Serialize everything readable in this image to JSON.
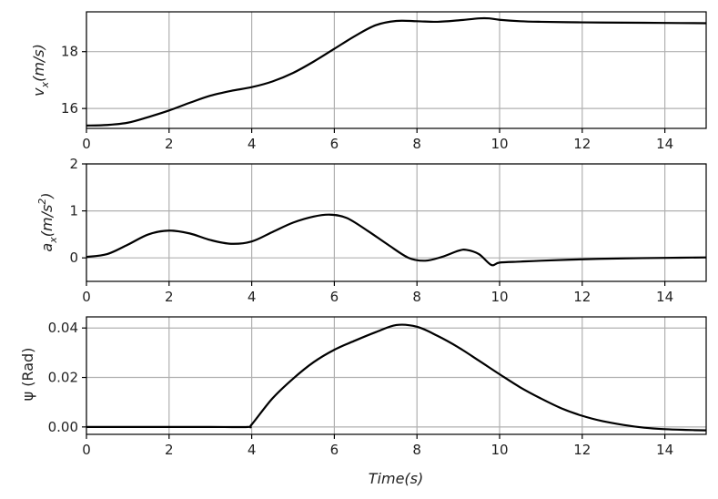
{
  "chart_data": [
    {
      "type": "line",
      "ylabel_symbol": "v",
      "ylabel_subscript": "x",
      "ylabel_unit": "(m/s)",
      "xlim": [
        0,
        15
      ],
      "ylim": [
        15.3,
        19.4
      ],
      "xticks": [
        0,
        2,
        4,
        6,
        8,
        10,
        12,
        14
      ],
      "xtick_labels": [
        "0",
        "2",
        "4",
        "6",
        "8",
        "10",
        "12",
        "14"
      ],
      "yticks": [
        16,
        18
      ],
      "ytick_labels": [
        "16",
        "18"
      ],
      "grid": true,
      "series": [
        {
          "color": "#000000",
          "x": [
            0,
            0.5,
            1,
            1.5,
            2,
            2.5,
            3,
            3.5,
            4,
            4.5,
            5,
            5.5,
            6,
            6.5,
            7,
            7.5,
            8,
            8.5,
            9,
            9.5,
            9.75,
            10,
            10.5,
            11,
            12,
            13,
            14,
            15
          ],
          "y": [
            15.4,
            15.42,
            15.5,
            15.7,
            15.93,
            16.2,
            16.45,
            16.62,
            16.75,
            16.95,
            17.25,
            17.65,
            18.1,
            18.55,
            18.93,
            19.08,
            19.07,
            19.05,
            19.1,
            19.17,
            19.17,
            19.12,
            19.07,
            19.05,
            19.03,
            19.02,
            19.01,
            19.0
          ]
        }
      ]
    },
    {
      "type": "line",
      "ylabel_symbol": "a",
      "ylabel_subscript": "x",
      "ylabel_unit": "(m/s",
      "ylabel_unit_sup": "2",
      "ylabel_unit_close": ")",
      "xlim": [
        0,
        15
      ],
      "ylim": [
        -0.5,
        2.0
      ],
      "xticks": [
        0,
        2,
        4,
        6,
        8,
        10,
        12,
        14
      ],
      "xtick_labels": [
        "0",
        "2",
        "4",
        "6",
        "8",
        "10",
        "12",
        "14"
      ],
      "yticks": [
        0,
        1,
        2
      ],
      "ytick_labels": [
        "0",
        "1",
        "2"
      ],
      "grid": true,
      "series": [
        {
          "color": "#000000",
          "x": [
            0,
            0.5,
            1,
            1.5,
            2,
            2.5,
            3,
            3.5,
            4,
            4.5,
            5,
            5.5,
            5.9,
            6.3,
            6.8,
            7.3,
            7.8,
            8.2,
            8.6,
            9.0,
            9.2,
            9.5,
            9.8,
            10.0,
            10.5,
            11,
            12,
            13,
            14,
            15
          ],
          "y": [
            0.02,
            0.08,
            0.28,
            0.5,
            0.58,
            0.52,
            0.38,
            0.3,
            0.35,
            0.55,
            0.75,
            0.88,
            0.92,
            0.85,
            0.58,
            0.28,
            0.0,
            -0.06,
            0.02,
            0.15,
            0.17,
            0.08,
            -0.15,
            -0.1,
            -0.08,
            -0.06,
            -0.03,
            -0.01,
            0.0,
            0.01
          ]
        }
      ]
    },
    {
      "type": "line",
      "ylabel": "ψ (Rad)",
      "xlabel": "Time(s)",
      "xlim": [
        0,
        15
      ],
      "ylim": [
        -0.003,
        0.0445
      ],
      "xticks": [
        0,
        2,
        4,
        6,
        8,
        10,
        12,
        14
      ],
      "xtick_labels": [
        "0",
        "2",
        "4",
        "6",
        "8",
        "10",
        "12",
        "14"
      ],
      "yticks": [
        0.0,
        0.02,
        0.04
      ],
      "ytick_labels": [
        "0.00",
        "0.02",
        "0.04"
      ],
      "grid": true,
      "series": [
        {
          "color": "#000000",
          "x": [
            0,
            1,
            2,
            3,
            3.9,
            4.0,
            4.5,
            5,
            5.5,
            6,
            6.5,
            7,
            7.5,
            8,
            8.5,
            9,
            9.5,
            10,
            10.5,
            11,
            11.5,
            12,
            12.5,
            13,
            13.5,
            14,
            14.5,
            15
          ],
          "y": [
            0,
            0,
            0,
            0,
            0,
            0.001,
            0.0115,
            0.0195,
            0.0262,
            0.0312,
            0.0349,
            0.0383,
            0.0412,
            0.0405,
            0.0368,
            0.0322,
            0.0268,
            0.0213,
            0.016,
            0.0115,
            0.0075,
            0.0045,
            0.0023,
            0.0008,
            -0.0003,
            -0.0009,
            -0.0012,
            -0.0014
          ]
        }
      ]
    }
  ]
}
